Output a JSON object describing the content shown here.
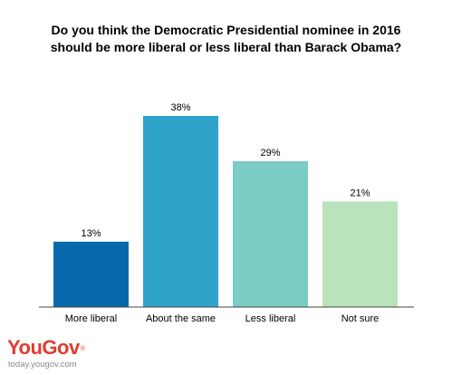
{
  "title_lines": [
    "Do you think the Democratic Presidential nominee in 2016",
    "should be more liberal or less liberal than Barack Obama?"
  ],
  "chart_data": {
    "type": "bar",
    "title": "Do you think the Democratic Presidential nominee in 2016 should be more liberal or less liberal than Barack Obama?",
    "categories": [
      "More liberal",
      "About the same",
      "Less liberal",
      "Not sure"
    ],
    "values": [
      13,
      38,
      29,
      21
    ],
    "value_labels": [
      "13%",
      "38%",
      "29%",
      "21%"
    ],
    "unit": "%",
    "colors": [
      "#0868ac",
      "#2fa3c9",
      "#7accc4",
      "#b9e3bb"
    ],
    "ylim": [
      0,
      38
    ],
    "grid": false,
    "legend": "none"
  },
  "brand": {
    "logo": "YouGov",
    "site": "today.yougov.com",
    "color": "#e03c31"
  }
}
